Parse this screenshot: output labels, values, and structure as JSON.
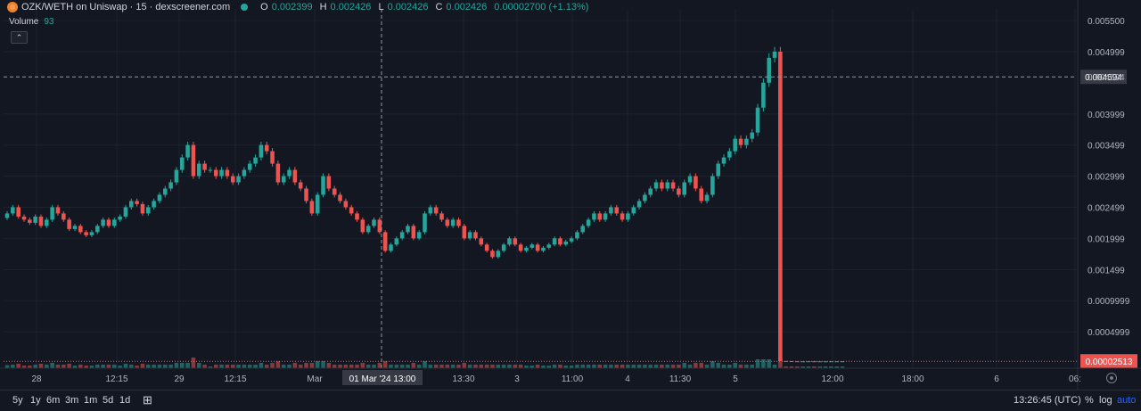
{
  "header": {
    "symbol": "OZK/WETH on Uniswap · 15 · dexscreener.com",
    "o_key": "O",
    "o_val": "0.002399",
    "h_key": "H",
    "h_val": "0.002426",
    "l_key": "L",
    "l_val": "0.002426",
    "c_key": "C",
    "c_val": "0.002426",
    "change": "0.00002700 (+1.13%)"
  },
  "volume": {
    "label": "Volume",
    "value": "93"
  },
  "bottombar": {
    "timeframes": [
      "5y",
      "1y",
      "6m",
      "3m",
      "1m",
      "5d",
      "1d"
    ],
    "clock": "13:26:45 (UTC)",
    "percent": "%",
    "log": "log",
    "auto": "auto"
  },
  "colors": {
    "up": "#26a69a",
    "down": "#ef5350",
    "bg": "#131722",
    "grid": "#1e222d"
  },
  "chart_data": {
    "type": "candlestick",
    "y_ticks": [
      "0.005500",
      "0.004999",
      "0.004594",
      "0.003999",
      "0.003499",
      "0.002999",
      "0.002499",
      "0.001999",
      "0.001499",
      "0.0009999",
      "0.0004999"
    ],
    "y_tick_values": [
      0.0055,
      0.004999,
      0.004594,
      0.003999,
      0.003499,
      0.002999,
      0.002499,
      0.001999,
      0.001499,
      0.0009999,
      0.0004999
    ],
    "ylim": [
      0.0,
      0.0056
    ],
    "crosshair_price_label": "0.004594",
    "crosshair_price": 0.004594,
    "last_price_label": "0.00002513",
    "last_price": 2.513e-05,
    "crosshair_time_label": "01 Mar '24 13:00",
    "x_ticks": [
      "28",
      "12:15",
      "29",
      "12:15",
      "Mar",
      "13:30",
      "3",
      "11:00",
      "4",
      "11:30",
      "5",
      "12:00",
      "18:00",
      "6",
      "06:"
    ],
    "close": [
      0.0024,
      0.0025,
      0.00235,
      0.0023,
      0.00225,
      0.00235,
      0.0022,
      0.0023,
      0.0025,
      0.0024,
      0.0023,
      0.00215,
      0.0022,
      0.0021,
      0.00205,
      0.0021,
      0.0022,
      0.0023,
      0.0022,
      0.0023,
      0.00235,
      0.0025,
      0.0026,
      0.00255,
      0.0024,
      0.0025,
      0.0026,
      0.0027,
      0.0028,
      0.0029,
      0.0031,
      0.0033,
      0.0035,
      0.003,
      0.0032,
      0.0031,
      0.0031,
      0.003,
      0.0031,
      0.003,
      0.0029,
      0.003,
      0.0031,
      0.0032,
      0.0033,
      0.0035,
      0.0034,
      0.0032,
      0.0029,
      0.003,
      0.0031,
      0.0029,
      0.0028,
      0.0026,
      0.0024,
      0.0027,
      0.003,
      0.0028,
      0.0027,
      0.0026,
      0.0025,
      0.0024,
      0.0023,
      0.0021,
      0.0022,
      0.0023,
      0.0021,
      0.0018,
      0.0019,
      0.002,
      0.0021,
      0.0022,
      0.002,
      0.0021,
      0.0024,
      0.0025,
      0.0024,
      0.0023,
      0.0022,
      0.0023,
      0.0022,
      0.002,
      0.0021,
      0.002,
      0.0019,
      0.0018,
      0.0017,
      0.0018,
      0.0019,
      0.002,
      0.0019,
      0.0018,
      0.00185,
      0.0019,
      0.0018,
      0.00185,
      0.0019,
      0.002,
      0.0019,
      0.00195,
      0.002,
      0.0021,
      0.0022,
      0.0023,
      0.0024,
      0.0023,
      0.0024,
      0.0025,
      0.0024,
      0.0023,
      0.0024,
      0.0025,
      0.0026,
      0.0027,
      0.0028,
      0.0029,
      0.0028,
      0.0029,
      0.0028,
      0.0027,
      0.0029,
      0.003,
      0.0028,
      0.0026,
      0.0027,
      0.003,
      0.0032,
      0.0033,
      0.0034,
      0.0036,
      0.0035,
      0.0036,
      0.0037,
      0.0041,
      0.0045,
      0.0049,
      0.005,
      3e-05,
      2.8e-05,
      2.6e-05,
      2.5e-05,
      2.5e-05,
      2.6e-05,
      2.5e-05,
      2.5e-05,
      2.5e-05,
      2.5e-05,
      2.5e-05,
      2.5e-05
    ]
  }
}
